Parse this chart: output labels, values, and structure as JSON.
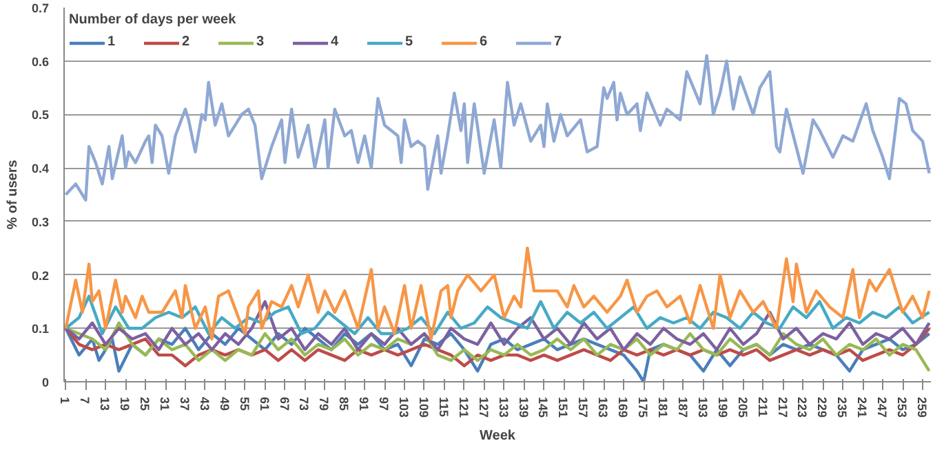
{
  "chart_data": {
    "type": "line",
    "xlabel": "Week",
    "ylabel": "% of users",
    "legend_title": "Number of days per week",
    "legend": "top",
    "grid": "y",
    "line_style": "solid",
    "marker": "none",
    "xlim": [
      0.5,
      261.5
    ],
    "ylim": [
      0,
      0.7
    ],
    "xticks": [
      1,
      7,
      13,
      19,
      25,
      31,
      37,
      43,
      49,
      55,
      61,
      67,
      73,
      79,
      85,
      91,
      97,
      103,
      109,
      115,
      121,
      127,
      133,
      139,
      145,
      151,
      157,
      163,
      169,
      175,
      181,
      187,
      193,
      199,
      205,
      211,
      217,
      223,
      229,
      235,
      241,
      247,
      253,
      259
    ],
    "yticks": [
      0,
      0.1,
      0.2,
      0.3,
      0.4,
      0.5,
      0.6,
      0.7
    ],
    "series": [
      {
        "name": "1",
        "color": "#4a7ebb",
        "x": [
          1,
          5,
          9,
          11,
          15,
          17,
          21,
          25,
          29,
          33,
          37,
          41,
          45,
          49,
          53,
          57,
          61,
          65,
          69,
          73,
          77,
          81,
          85,
          89,
          93,
          97,
          101,
          105,
          109,
          113,
          117,
          121,
          125,
          129,
          133,
          137,
          141,
          145,
          149,
          153,
          157,
          161,
          165,
          169,
          173,
          175,
          177,
          181,
          185,
          189,
          193,
          197,
          201,
          205,
          209,
          213,
          217,
          221,
          225,
          229,
          233,
          237,
          241,
          245,
          249,
          253,
          257,
          261
        ],
        "values": [
          0.1,
          0.05,
          0.08,
          0.04,
          0.08,
          0.02,
          0.07,
          0.05,
          0.08,
          0.07,
          0.1,
          0.06,
          0.09,
          0.07,
          0.1,
          0.08,
          0.06,
          0.09,
          0.07,
          0.1,
          0.08,
          0.06,
          0.09,
          0.07,
          0.09,
          0.06,
          0.07,
          0.03,
          0.08,
          0.07,
          0.09,
          0.06,
          0.02,
          0.07,
          0.08,
          0.06,
          0.07,
          0.08,
          0.06,
          0.07,
          0.08,
          0.07,
          0.06,
          0.05,
          0.02,
          0.0,
          0.06,
          0.07,
          0.06,
          0.05,
          0.02,
          0.06,
          0.03,
          0.06,
          0.07,
          0.05,
          0.07,
          0.06,
          0.07,
          0.06,
          0.05,
          0.02,
          0.06,
          0.07,
          0.08,
          0.06,
          0.07,
          0.09
        ]
      },
      {
        "name": "2",
        "color": "#be4b48",
        "x": [
          1,
          5,
          9,
          13,
          17,
          21,
          25,
          29,
          33,
          37,
          41,
          45,
          49,
          53,
          57,
          61,
          65,
          69,
          73,
          77,
          81,
          85,
          89,
          93,
          97,
          101,
          105,
          109,
          113,
          117,
          121,
          125,
          129,
          133,
          137,
          141,
          145,
          149,
          153,
          157,
          161,
          165,
          169,
          173,
          177,
          181,
          185,
          189,
          193,
          197,
          201,
          205,
          209,
          213,
          217,
          221,
          225,
          229,
          233,
          237,
          241,
          245,
          249,
          253,
          257,
          261
        ],
        "values": [
          0.1,
          0.07,
          0.06,
          0.07,
          0.06,
          0.07,
          0.08,
          0.05,
          0.05,
          0.03,
          0.05,
          0.06,
          0.05,
          0.06,
          0.05,
          0.06,
          0.04,
          0.06,
          0.04,
          0.06,
          0.05,
          0.04,
          0.06,
          0.05,
          0.06,
          0.05,
          0.06,
          0.07,
          0.06,
          0.05,
          0.03,
          0.05,
          0.04,
          0.05,
          0.05,
          0.04,
          0.05,
          0.04,
          0.05,
          0.06,
          0.05,
          0.04,
          0.06,
          0.05,
          0.06,
          0.05,
          0.06,
          0.05,
          0.06,
          0.05,
          0.06,
          0.05,
          0.06,
          0.04,
          0.05,
          0.06,
          0.05,
          0.06,
          0.05,
          0.06,
          0.04,
          0.05,
          0.06,
          0.05,
          0.07,
          0.1
        ]
      },
      {
        "name": "3",
        "color": "#98b954",
        "x": [
          1,
          5,
          9,
          13,
          17,
          21,
          25,
          29,
          33,
          37,
          41,
          45,
          49,
          53,
          57,
          61,
          65,
          69,
          73,
          77,
          81,
          85,
          89,
          93,
          97,
          101,
          105,
          109,
          113,
          117,
          121,
          125,
          129,
          133,
          137,
          141,
          145,
          149,
          153,
          157,
          161,
          165,
          169,
          173,
          177,
          181,
          185,
          189,
          193,
          197,
          201,
          205,
          209,
          213,
          217,
          221,
          225,
          229,
          233,
          237,
          241,
          245,
          249,
          253,
          257,
          261
        ],
        "values": [
          0.1,
          0.09,
          0.08,
          0.06,
          0.11,
          0.07,
          0.05,
          0.08,
          0.06,
          0.07,
          0.04,
          0.06,
          0.04,
          0.06,
          0.05,
          0.09,
          0.06,
          0.08,
          0.05,
          0.07,
          0.06,
          0.08,
          0.05,
          0.07,
          0.06,
          0.08,
          0.07,
          0.09,
          0.05,
          0.04,
          0.06,
          0.04,
          0.06,
          0.05,
          0.07,
          0.05,
          0.06,
          0.08,
          0.06,
          0.08,
          0.05,
          0.07,
          0.06,
          0.08,
          0.05,
          0.07,
          0.06,
          0.09,
          0.06,
          0.05,
          0.08,
          0.06,
          0.07,
          0.05,
          0.09,
          0.07,
          0.06,
          0.08,
          0.05,
          0.07,
          0.06,
          0.08,
          0.05,
          0.07,
          0.06,
          0.02
        ]
      },
      {
        "name": "4",
        "color": "#7d60a0",
        "x": [
          1,
          5,
          9,
          13,
          17,
          21,
          25,
          29,
          33,
          37,
          41,
          45,
          49,
          53,
          57,
          61,
          65,
          69,
          73,
          77,
          81,
          85,
          89,
          93,
          97,
          101,
          105,
          109,
          113,
          117,
          121,
          125,
          129,
          133,
          137,
          141,
          145,
          149,
          153,
          157,
          161,
          165,
          169,
          173,
          177,
          181,
          185,
          189,
          193,
          197,
          201,
          205,
          209,
          213,
          217,
          221,
          225,
          229,
          233,
          237,
          241,
          245,
          249,
          253,
          257,
          261
        ],
        "values": [
          0.1,
          0.08,
          0.11,
          0.07,
          0.1,
          0.08,
          0.09,
          0.06,
          0.1,
          0.07,
          0.09,
          0.06,
          0.09,
          0.07,
          0.1,
          0.15,
          0.08,
          0.1,
          0.06,
          0.09,
          0.07,
          0.1,
          0.06,
          0.09,
          0.07,
          0.1,
          0.07,
          0.09,
          0.06,
          0.1,
          0.08,
          0.07,
          0.11,
          0.07,
          0.1,
          0.12,
          0.08,
          0.1,
          0.07,
          0.11,
          0.08,
          0.1,
          0.06,
          0.09,
          0.07,
          0.1,
          0.08,
          0.07,
          0.09,
          0.06,
          0.1,
          0.07,
          0.09,
          0.13,
          0.08,
          0.1,
          0.07,
          0.09,
          0.08,
          0.11,
          0.07,
          0.09,
          0.08,
          0.1,
          0.07,
          0.11
        ]
      },
      {
        "name": "5",
        "color": "#46aac5",
        "x": [
          1,
          5,
          8,
          12,
          16,
          20,
          24,
          28,
          32,
          36,
          40,
          44,
          48,
          52,
          56,
          60,
          64,
          68,
          72,
          76,
          80,
          84,
          88,
          92,
          96,
          100,
          104,
          108,
          112,
          116,
          120,
          124,
          128,
          132,
          136,
          140,
          144,
          148,
          152,
          156,
          160,
          164,
          168,
          172,
          176,
          180,
          184,
          188,
          192,
          196,
          200,
          204,
          208,
          212,
          216,
          220,
          224,
          228,
          232,
          236,
          240,
          244,
          248,
          252,
          256,
          261
        ],
        "values": [
          0.1,
          0.12,
          0.16,
          0.09,
          0.14,
          0.1,
          0.1,
          0.12,
          0.13,
          0.12,
          0.14,
          0.09,
          0.12,
          0.1,
          0.12,
          0.11,
          0.13,
          0.14,
          0.09,
          0.1,
          0.13,
          0.11,
          0.09,
          0.12,
          0.09,
          0.09,
          0.1,
          0.12,
          0.09,
          0.13,
          0.1,
          0.11,
          0.14,
          0.12,
          0.11,
          0.1,
          0.15,
          0.1,
          0.13,
          0.11,
          0.13,
          0.1,
          0.12,
          0.14,
          0.1,
          0.12,
          0.11,
          0.12,
          0.1,
          0.13,
          0.12,
          0.1,
          0.13,
          0.11,
          0.1,
          0.14,
          0.12,
          0.15,
          0.1,
          0.12,
          0.11,
          0.13,
          0.12,
          0.14,
          0.11,
          0.13
        ]
      },
      {
        "name": "6",
        "color": "#f79646",
        "x": [
          1,
          4,
          6,
          8,
          9,
          11,
          13,
          16,
          18,
          19,
          22,
          24,
          26,
          30,
          34,
          36,
          37,
          40,
          43,
          45,
          47,
          50,
          53,
          55,
          56,
          59,
          60,
          63,
          66,
          69,
          71,
          74,
          77,
          79,
          82,
          85,
          89,
          93,
          95,
          97,
          100,
          103,
          105,
          108,
          111,
          114,
          116,
          117,
          119,
          122,
          126,
          130,
          133,
          136,
          138,
          140,
          142,
          145,
          149,
          152,
          154,
          157,
          160,
          164,
          168,
          170,
          173,
          176,
          179,
          182,
          186,
          189,
          192,
          196,
          198,
          201,
          204,
          208,
          211,
          215,
          218,
          220,
          221,
          224,
          227,
          231,
          235,
          238,
          240,
          243,
          245,
          249,
          253,
          256,
          259,
          261
        ],
        "values": [
          0.1,
          0.19,
          0.13,
          0.22,
          0.15,
          0.17,
          0.1,
          0.19,
          0.13,
          0.16,
          0.12,
          0.16,
          0.13,
          0.13,
          0.17,
          0.12,
          0.18,
          0.1,
          0.14,
          0.08,
          0.16,
          0.17,
          0.12,
          0.09,
          0.14,
          0.17,
          0.1,
          0.15,
          0.14,
          0.18,
          0.14,
          0.2,
          0.13,
          0.17,
          0.13,
          0.17,
          0.1,
          0.21,
          0.1,
          0.14,
          0.09,
          0.18,
          0.1,
          0.18,
          0.08,
          0.17,
          0.18,
          0.12,
          0.17,
          0.2,
          0.17,
          0.2,
          0.12,
          0.16,
          0.14,
          0.25,
          0.17,
          0.17,
          0.17,
          0.14,
          0.18,
          0.14,
          0.16,
          0.13,
          0.16,
          0.19,
          0.13,
          0.16,
          0.17,
          0.14,
          0.16,
          0.11,
          0.18,
          0.1,
          0.2,
          0.12,
          0.17,
          0.13,
          0.15,
          0.1,
          0.23,
          0.15,
          0.22,
          0.13,
          0.17,
          0.14,
          0.12,
          0.21,
          0.12,
          0.19,
          0.17,
          0.21,
          0.13,
          0.16,
          0.12,
          0.17
        ]
      },
      {
        "name": "7",
        "color": "#8fa8d4",
        "x": [
          1,
          4,
          7,
          8,
          10,
          12,
          14,
          15,
          18,
          19,
          20,
          22,
          25,
          26,
          27,
          28,
          30,
          32,
          34,
          37,
          38,
          40,
          42,
          43,
          44,
          46,
          48,
          50,
          54,
          56,
          58,
          60,
          63,
          66,
          67,
          69,
          71,
          74,
          76,
          79,
          80,
          82,
          85,
          87,
          89,
          91,
          93,
          95,
          97,
          101,
          102,
          103,
          105,
          107,
          109,
          110,
          113,
          114,
          116,
          118,
          120,
          121,
          122,
          124,
          127,
          130,
          132,
          134,
          136,
          138,
          141,
          144,
          145,
          146,
          148,
          150,
          152,
          156,
          158,
          161,
          163,
          164,
          166,
          167,
          168,
          170,
          173,
          174,
          176,
          180,
          182,
          186,
          188,
          190,
          192,
          194,
          196,
          198,
          200,
          202,
          204,
          208,
          210,
          213,
          215,
          216,
          218,
          223,
          226,
          228,
          232,
          235,
          238,
          242,
          244,
          247,
          249,
          252,
          254,
          256,
          259,
          261
        ],
        "values": [
          0.35,
          0.37,
          0.34,
          0.44,
          0.41,
          0.37,
          0.44,
          0.38,
          0.46,
          0.4,
          0.43,
          0.41,
          0.45,
          0.46,
          0.41,
          0.48,
          0.46,
          0.39,
          0.46,
          0.51,
          0.49,
          0.43,
          0.5,
          0.49,
          0.56,
          0.48,
          0.52,
          0.46,
          0.5,
          0.51,
          0.48,
          0.38,
          0.44,
          0.49,
          0.41,
          0.51,
          0.42,
          0.48,
          0.4,
          0.49,
          0.4,
          0.51,
          0.46,
          0.47,
          0.41,
          0.46,
          0.4,
          0.53,
          0.48,
          0.46,
          0.41,
          0.49,
          0.44,
          0.45,
          0.44,
          0.36,
          0.46,
          0.39,
          0.46,
          0.54,
          0.47,
          0.52,
          0.41,
          0.52,
          0.39,
          0.49,
          0.4,
          0.56,
          0.48,
          0.52,
          0.45,
          0.48,
          0.44,
          0.52,
          0.45,
          0.5,
          0.46,
          0.49,
          0.43,
          0.44,
          0.55,
          0.53,
          0.56,
          0.49,
          0.54,
          0.5,
          0.52,
          0.47,
          0.54,
          0.48,
          0.51,
          0.49,
          0.58,
          0.55,
          0.52,
          0.61,
          0.5,
          0.54,
          0.6,
          0.51,
          0.57,
          0.5,
          0.55,
          0.58,
          0.44,
          0.43,
          0.51,
          0.39,
          0.49,
          0.47,
          0.42,
          0.46,
          0.45,
          0.52,
          0.47,
          0.42,
          0.38,
          0.53,
          0.52,
          0.47,
          0.45,
          0.39
        ]
      }
    ]
  }
}
